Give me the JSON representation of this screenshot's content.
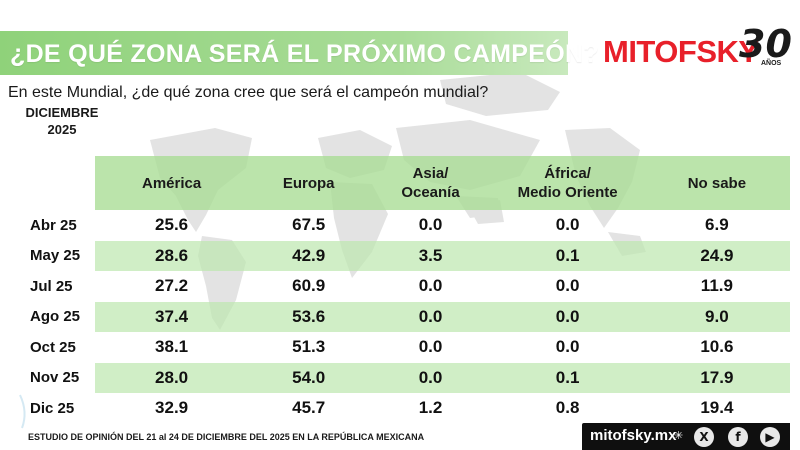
{
  "header": {
    "title": "¿DE QUÉ ZONA SERÁ EL PRÓXIMO CAMPEÓN?",
    "logo_word": "MITOFSKY",
    "logo_anniversary": "30",
    "logo_years": "AÑOS"
  },
  "question": "En este Mundial, ¿de qué zona cree que será el campeón mundial?",
  "period": {
    "month": "DICIEMBRE",
    "year": "2025"
  },
  "table": {
    "columns": [
      "América",
      "Europa",
      "Asia/\nOceanía",
      "África/\nMedio Oriente",
      "No sabe"
    ],
    "rows": [
      {
        "label": "Abr 25",
        "values": [
          "25.6",
          "67.5",
          "0.0",
          "0.0",
          "6.9"
        ]
      },
      {
        "label": "May 25",
        "values": [
          "28.6",
          "42.9",
          "3.5",
          "0.1",
          "24.9"
        ]
      },
      {
        "label": "Jul 25",
        "values": [
          "27.2",
          "60.9",
          "0.0",
          "0.0",
          "11.9"
        ]
      },
      {
        "label": "Ago 25",
        "values": [
          "37.4",
          "53.6",
          "0.0",
          "0.0",
          "9.0"
        ]
      },
      {
        "label": "Oct 25",
        "values": [
          "38.1",
          "51.3",
          "0.0",
          "0.0",
          "10.6"
        ]
      },
      {
        "label": "Nov 25",
        "values": [
          "28.0",
          "54.0",
          "0.0",
          "0.1",
          "17.9"
        ]
      },
      {
        "label": "Dic 25",
        "values": [
          "32.9",
          "45.7",
          "1.2",
          "0.8",
          "19.4"
        ]
      }
    ]
  },
  "footer": {
    "note": "ESTUDIO DE OPINIÓN DEL 21 al 24 DE DICIEMBRE DEL 2025 EN LA REPÚBLICA MEXICANA",
    "site": "mitofsky.mx",
    "social_icons": [
      "x-icon",
      "facebook-icon",
      "youtube-icon"
    ]
  },
  "colors": {
    "title_bar": "#9dd888",
    "brand_red": "#e8202a",
    "row_shade": "#bee8b0",
    "footer_bg": "#0f0f0f"
  }
}
